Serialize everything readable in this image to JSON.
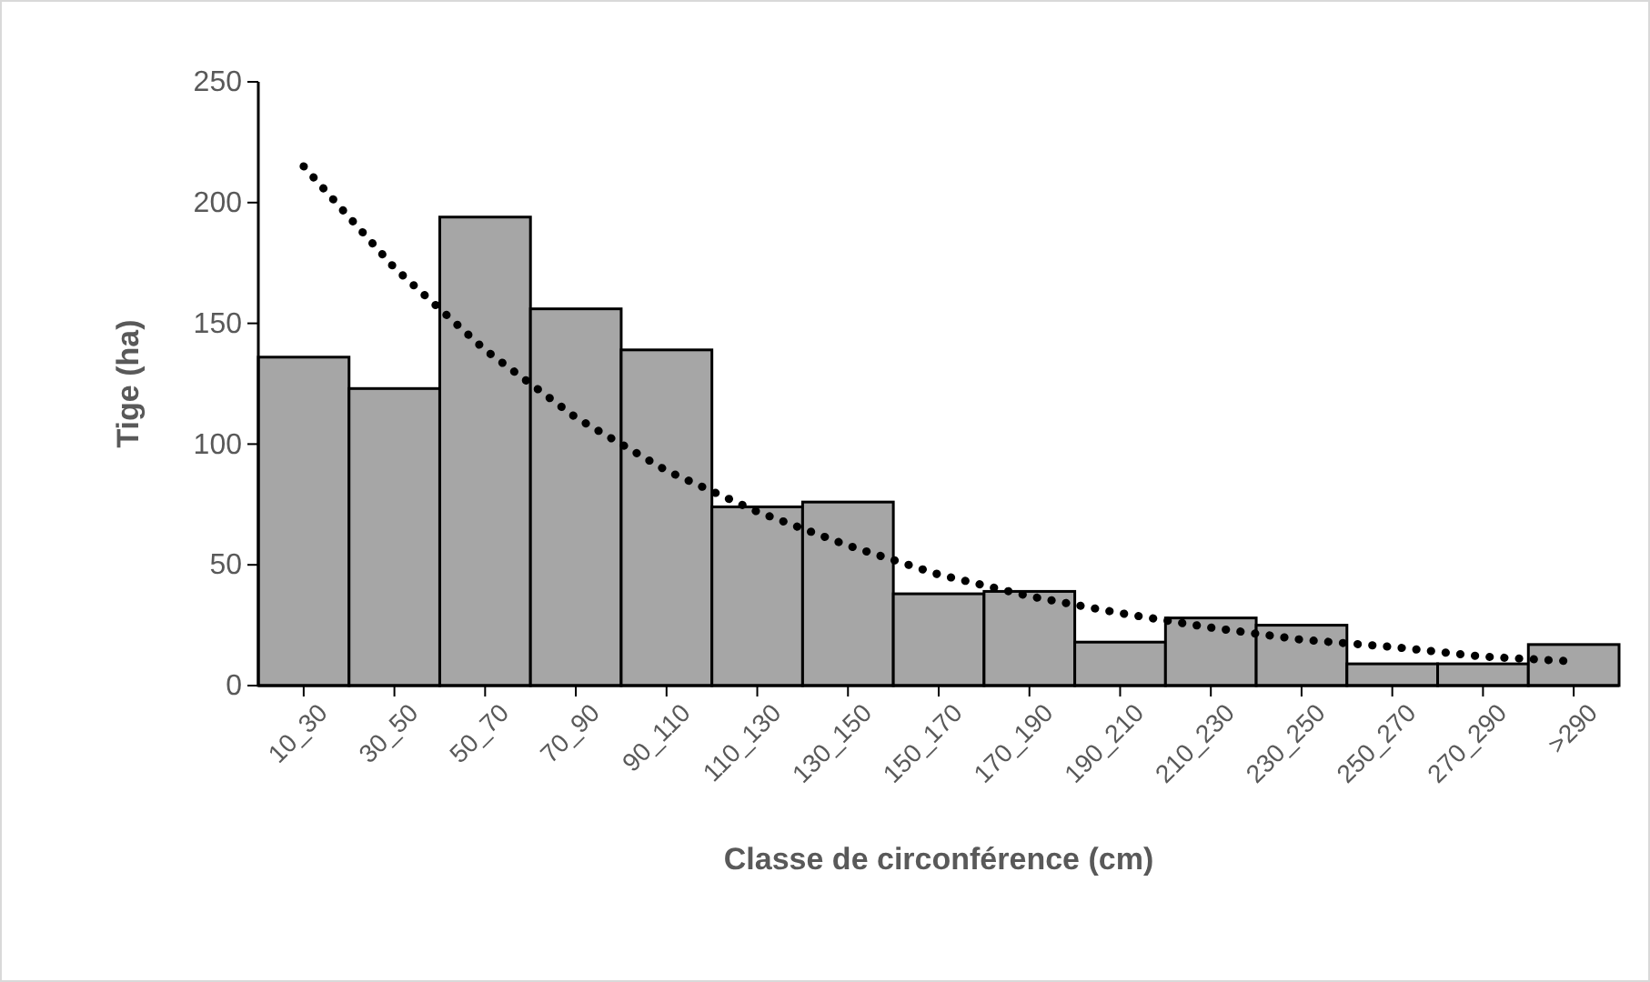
{
  "chart_data": {
    "type": "bar",
    "xlabel": "Classe de circonférence (cm)",
    "ylabel": "Tige (ha)",
    "categories": [
      "10_30",
      "30_50",
      "50_70",
      "70_90",
      "90_110",
      "110_130",
      "130_150",
      "150_170",
      "170_190",
      "190_210",
      "210_230",
      "230_250",
      "250_270",
      "270_290",
      ">290"
    ],
    "series": [
      {
        "color": "#a6a6a6",
        "values": [
          136,
          123,
          194,
          156,
          139,
          74,
          76,
          38,
          39,
          18,
          28,
          25,
          9,
          9,
          17
        ]
      },
      {
        "type": "line",
        "color": "#000000",
        "line_style": "dotted",
        "values": [
          215,
          173,
          139,
          111,
          89,
          72,
          58,
          46,
          37,
          30,
          24,
          19,
          16,
          12,
          10
        ]
      }
    ],
    "ylim": [
      0,
      250
    ],
    "yticks": [
      0,
      50,
      100,
      150,
      200,
      250
    ],
    "grid": false
  }
}
